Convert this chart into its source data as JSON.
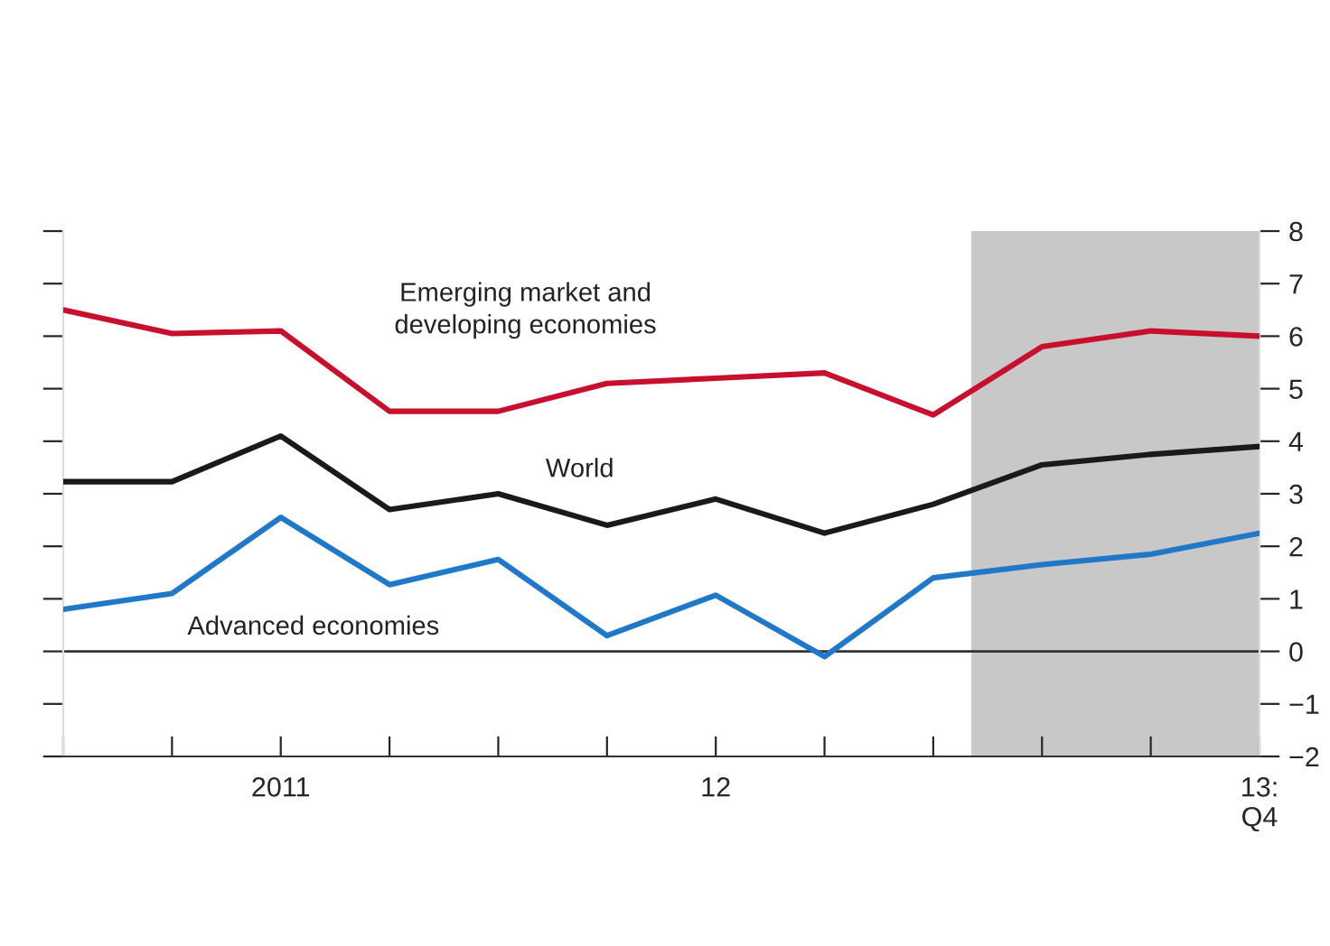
{
  "chart_data": {
    "type": "line",
    "categories": [
      null,
      null,
      "2011",
      null,
      null,
      null,
      "12",
      null,
      null,
      null,
      null,
      "13:\nQ4"
    ],
    "series": [
      {
        "name": "Emerging market and\ndeveloping economies",
        "color": "#c8102e",
        "values": [
          6.5,
          6.05,
          6.1,
          4.57,
          4.57,
          5.1,
          5.2,
          5.3,
          4.5,
          5.8,
          6.1,
          6.0
        ]
      },
      {
        "name": "World",
        "color": "#1a1a1a",
        "values": [
          3.23,
          3.23,
          4.1,
          2.7,
          3.0,
          2.4,
          2.9,
          2.25,
          2.8,
          3.55,
          3.75,
          3.9
        ]
      },
      {
        "name": "Advanced economies",
        "color": "#1f78c8",
        "values": [
          0.8,
          1.1,
          2.55,
          1.27,
          1.75,
          0.3,
          1.07,
          -0.1,
          1.4,
          1.65,
          1.85,
          2.25
        ]
      }
    ],
    "ylim": [
      -2,
      8
    ],
    "yticks": [
      {
        "value": -2,
        "label": "−2"
      },
      {
        "value": -1,
        "label": "−1"
      },
      0,
      1,
      2,
      3,
      4,
      5,
      6,
      7,
      8
    ],
    "ref_lines": [
      {
        "axis": "y",
        "value": 0,
        "color": "#333333"
      }
    ],
    "grid": false,
    "legend": false,
    "marker": "none",
    "line_style": "solid"
  }
}
